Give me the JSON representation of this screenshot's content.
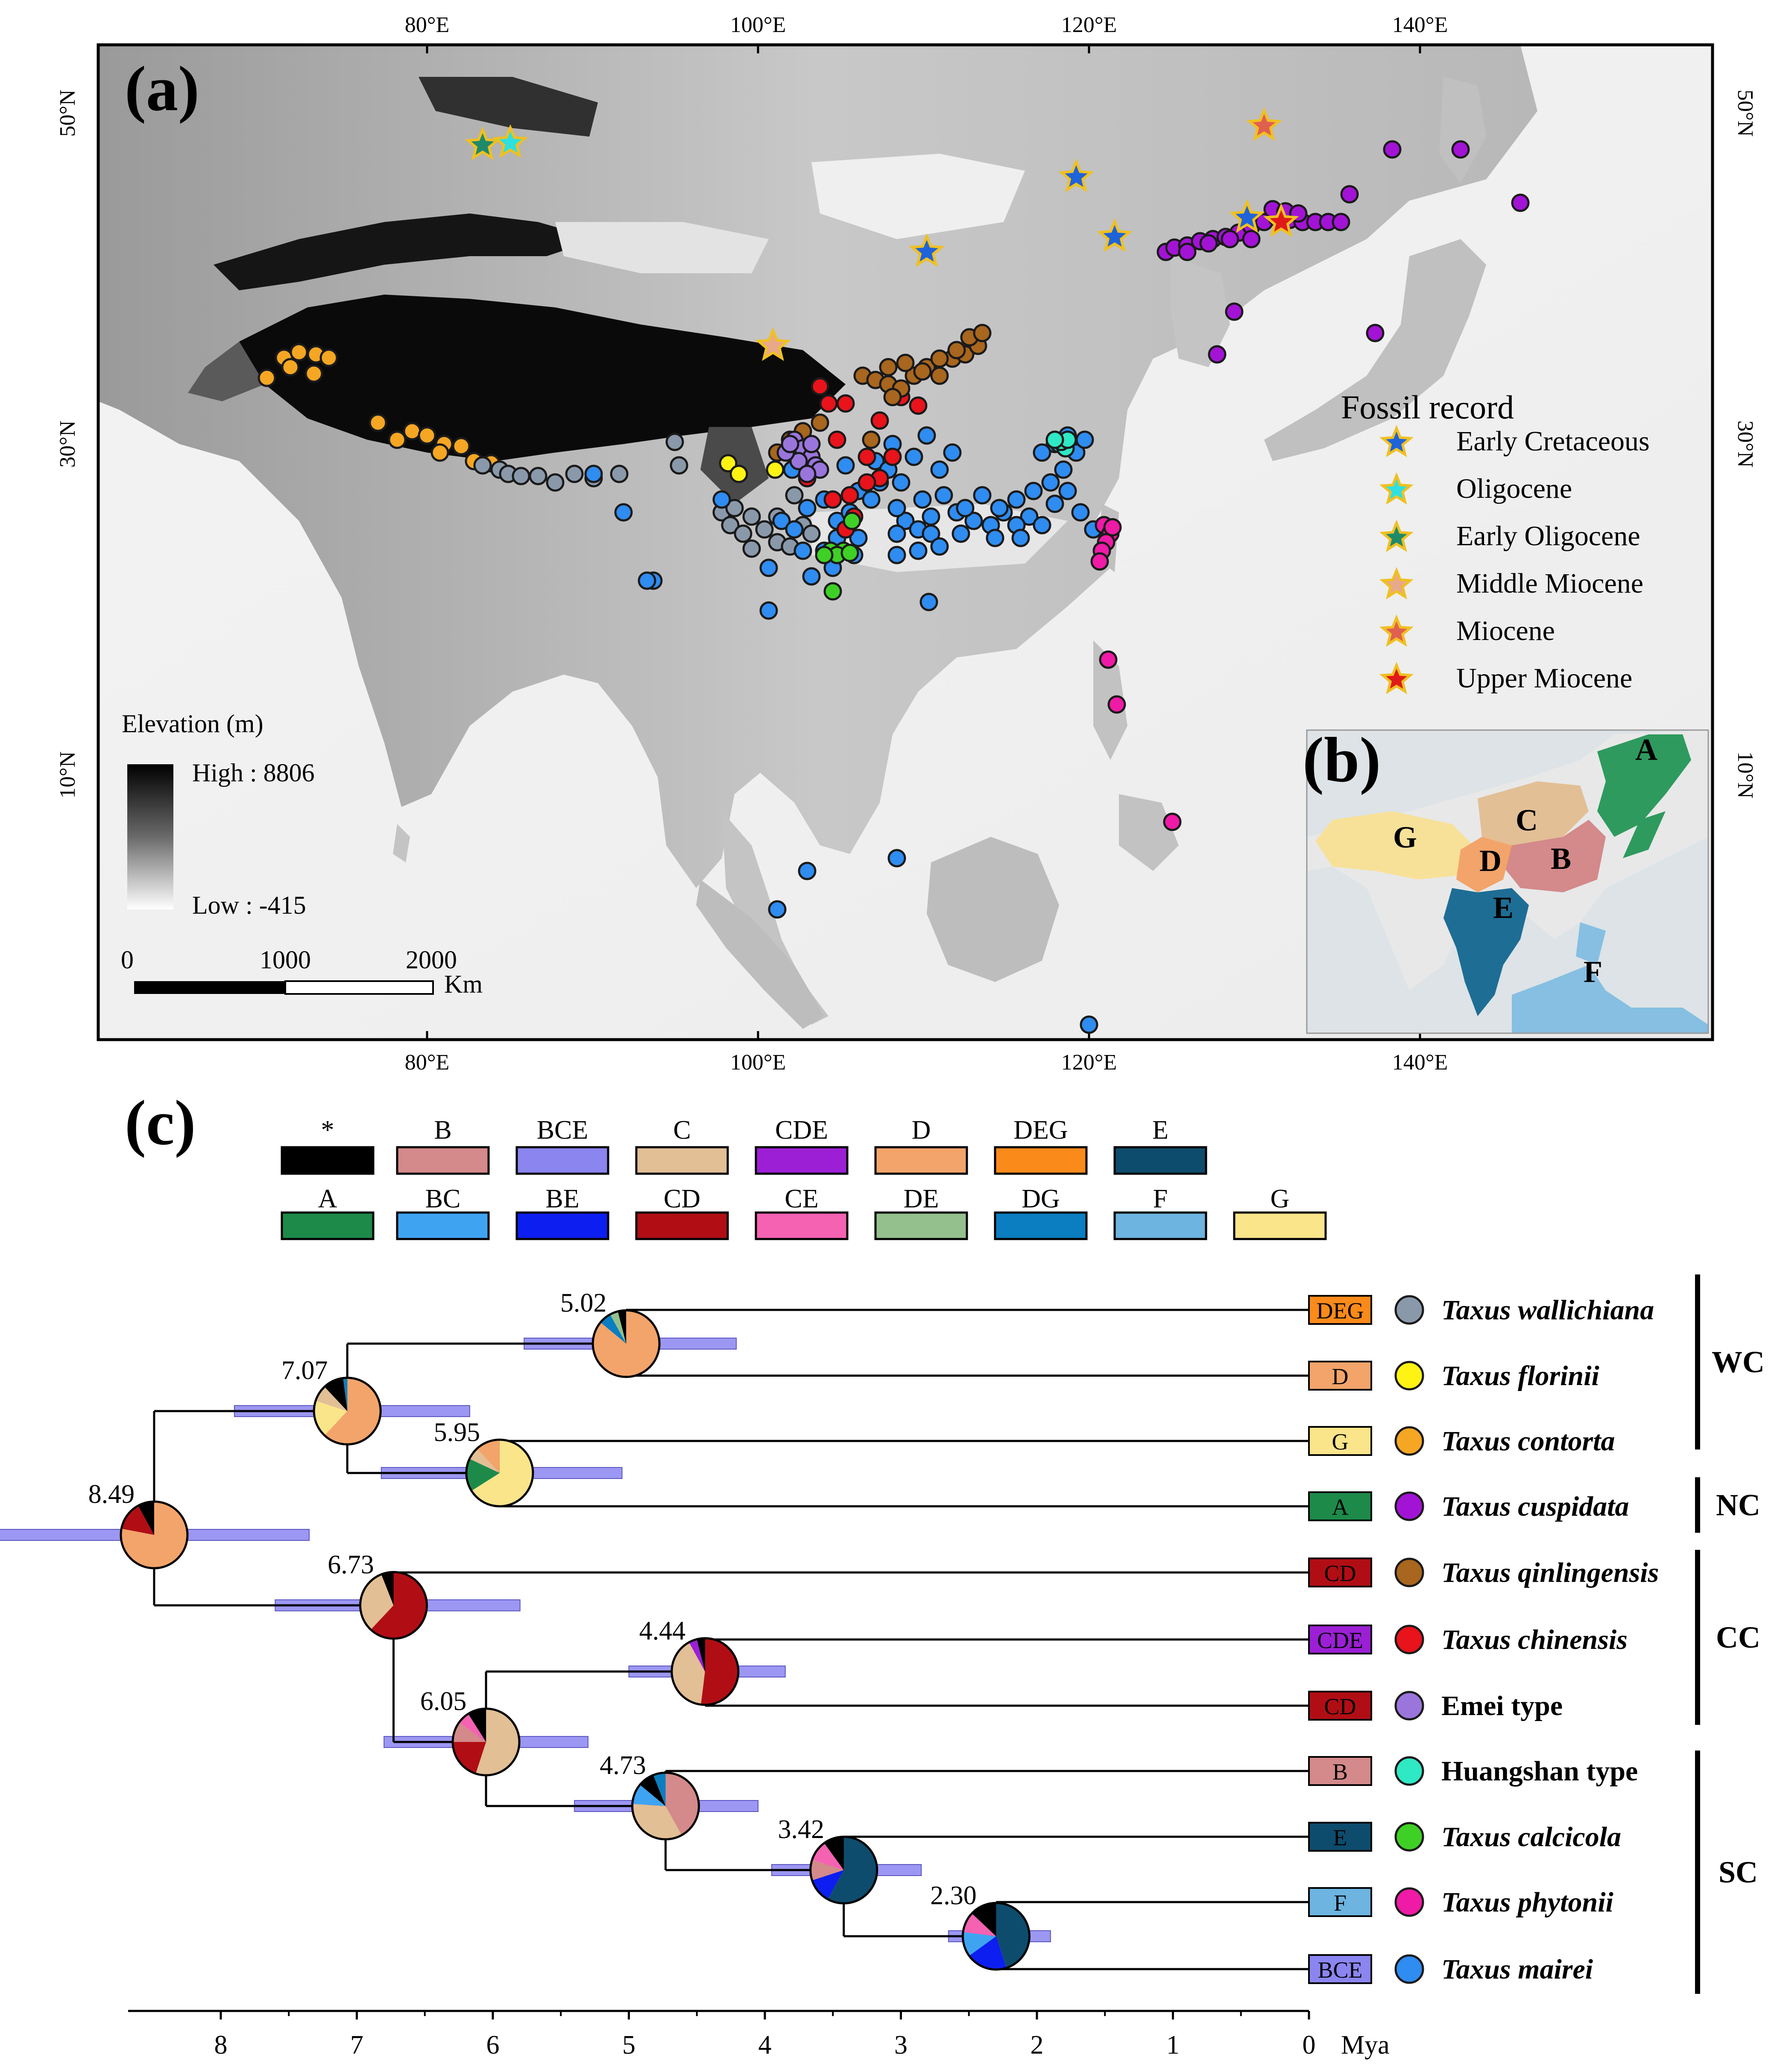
{
  "panels": {
    "a": "(a)",
    "b": "(b)",
    "c": "(c)"
  },
  "map": {
    "lon_ticks": [
      "80°E",
      "100°E",
      "120°E",
      "140°E"
    ],
    "lat_ticks": [
      "50°N",
      "30°N",
      "10°N"
    ],
    "elevation": {
      "title": "Elevation (m)",
      "high": "High : 8806",
      "low": "Low : -415"
    },
    "scalebar": {
      "labels": [
        "0",
        "1000",
        "2000"
      ],
      "unit": "Km"
    },
    "fossil_legend": {
      "title": "Fossil record",
      "items": [
        {
          "label": "Early Cretaceous",
          "color": "#1f63d9"
        },
        {
          "label": "Oligocene",
          "color": "#2fe0e0"
        },
        {
          "label": "Early Oligocene",
          "color": "#1f8a6a"
        },
        {
          "label": "Middle Miocene",
          "color": "#e8a98a"
        },
        {
          "label": "Miocene",
          "color": "#e0604f"
        },
        {
          "label": "Upper Miocene",
          "color": "#e01a1a"
        }
      ]
    },
    "inset_regions": [
      {
        "letter": "A",
        "color": "#2e9a5e"
      },
      {
        "letter": "B",
        "color": "#d4898a"
      },
      {
        "letter": "C",
        "color": "#e2bf95"
      },
      {
        "letter": "D",
        "color": "#f3a46a"
      },
      {
        "letter": "E",
        "color": "#1e6d95"
      },
      {
        "letter": "F",
        "color": "#86bfe2"
      },
      {
        "letter": "G",
        "color": "#f7e199"
      }
    ],
    "clusters": [
      {
        "species": "Taxus contorta",
        "color": "#f5a623"
      },
      {
        "species": "Taxus wallichiana",
        "color": "#8a99aa"
      },
      {
        "species": "Taxus mairei",
        "color": "#2f8cf0"
      },
      {
        "species": "Taxus chinensis",
        "color": "#e8131b"
      },
      {
        "species": "Taxus qinlingensis",
        "color": "#a8661e"
      },
      {
        "species": "Taxus cuspidata",
        "color": "#a313d6"
      },
      {
        "species": "Taxus phytonii",
        "color": "#ef1aa6"
      },
      {
        "species": "Taxus calcicola",
        "color": "#3fd026"
      },
      {
        "species": "Taxus florinii",
        "color": "#fff314"
      },
      {
        "species": "Emei type",
        "color": "#9a76dc"
      },
      {
        "species": "Huangshan type",
        "color": "#2fe8c4"
      }
    ]
  },
  "area_legend": {
    "row1": [
      {
        "label": "*",
        "color": "#000000"
      },
      {
        "label": "B",
        "color": "#d4898a"
      },
      {
        "label": "BCE",
        "color": "#8b85f0"
      },
      {
        "label": "C",
        "color": "#e2bf95"
      },
      {
        "label": "CDE",
        "color": "#9c1fd6"
      },
      {
        "label": "D",
        "color": "#f3a46a"
      },
      {
        "label": "DEG",
        "color": "#fa8a1a"
      },
      {
        "label": "E",
        "color": "#0e4c6d"
      }
    ],
    "row2": [
      {
        "label": "A",
        "color": "#1d8a4a"
      },
      {
        "label": "BC",
        "color": "#3ea4f2"
      },
      {
        "label": "BE",
        "color": "#0d1ef0"
      },
      {
        "label": "CD",
        "color": "#b00e14"
      },
      {
        "label": "CE",
        "color": "#f562b2"
      },
      {
        "label": "DE",
        "color": "#93c08c"
      },
      {
        "label": "DG",
        "color": "#0a7ec0"
      },
      {
        "label": "F",
        "color": "#6db4e0"
      },
      {
        "label": "G",
        "color": "#fbe58a"
      }
    ]
  },
  "tree": {
    "axis": {
      "ticks": [
        "8",
        "7",
        "6",
        "5",
        "4",
        "3",
        "2",
        "1",
        "0"
      ],
      "unit": "Mya"
    },
    "tips": [
      {
        "area": "DEG",
        "species": "Taxus wallichiana",
        "italic": true,
        "color": "#8a99aa"
      },
      {
        "area": "D",
        "species": "Taxus florinii",
        "italic": true,
        "color": "#fff314"
      },
      {
        "area": "G",
        "species": "Taxus contorta",
        "italic": true,
        "color": "#f5a623"
      },
      {
        "area": "A",
        "species": "Taxus cuspidata",
        "italic": true,
        "color": "#a313d6"
      },
      {
        "area": "CD",
        "species": "Taxus qinlingensis",
        "italic": true,
        "color": "#a8661e"
      },
      {
        "area": "CDE",
        "species": "Taxus chinensis",
        "italic": true,
        "color": "#e8131b"
      },
      {
        "area": "CD",
        "species": "Emei type",
        "italic": false,
        "color": "#9a76dc"
      },
      {
        "area": "B",
        "species": "Huangshan type",
        "italic": false,
        "color": "#2fe8c4"
      },
      {
        "area": "E",
        "species": "Taxus calcicola",
        "italic": true,
        "color": "#3fd026"
      },
      {
        "area": "F",
        "species": "Taxus phytonii",
        "italic": true,
        "color": "#ef1aa6"
      },
      {
        "area": "BCE",
        "species": "Taxus mairei",
        "italic": true,
        "color": "#2f8cf0"
      }
    ],
    "nodes": [
      {
        "age": "8.49"
      },
      {
        "age": "7.07"
      },
      {
        "age": "5.02"
      },
      {
        "age": "5.95"
      },
      {
        "age": "6.73"
      },
      {
        "age": "6.05"
      },
      {
        "age": "4.44"
      },
      {
        "age": "4.73"
      },
      {
        "age": "3.42"
      },
      {
        "age": "2.30"
      }
    ],
    "clades": [
      {
        "label": "WC"
      },
      {
        "label": "NC"
      },
      {
        "label": "CC"
      },
      {
        "label": "SC"
      }
    ]
  }
}
